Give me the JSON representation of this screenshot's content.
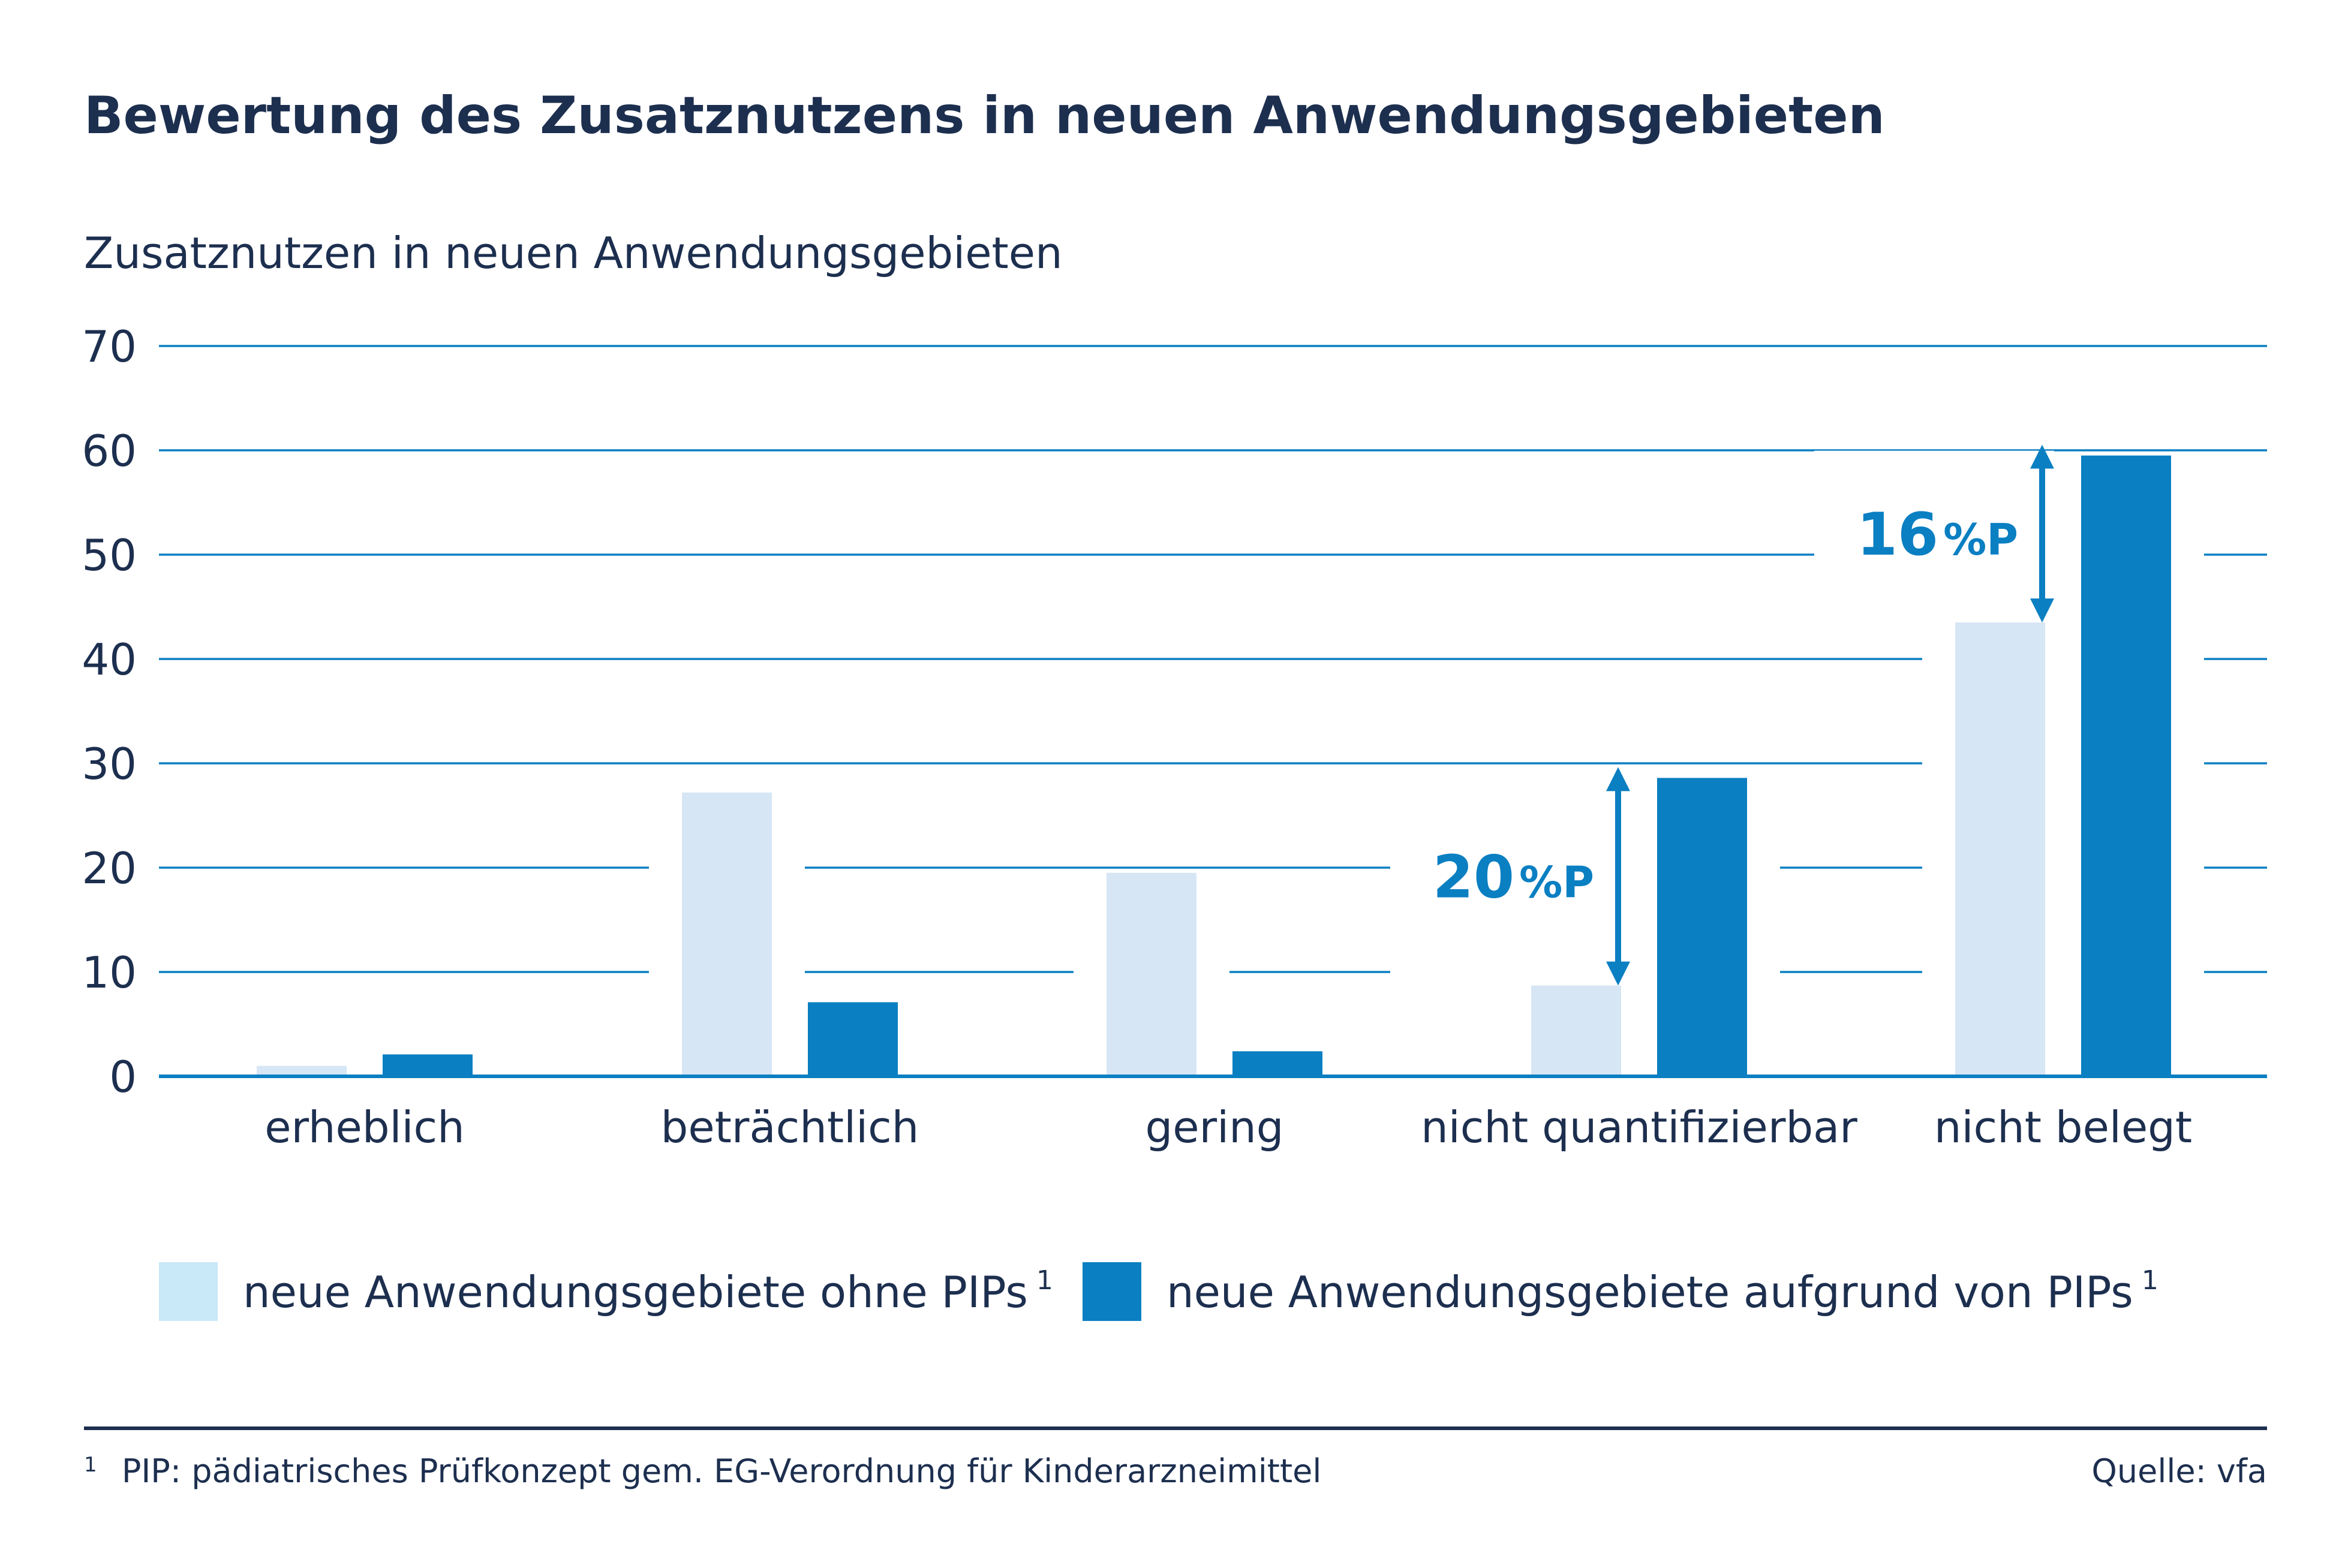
{
  "title": "Bewertung des Zusatznutzens in neuen Anwendungsgebieten",
  "footnote": {
    "marker": "1",
    "text": "PIP: pädiatrisches Prüfkonzept gem. EG-Verordnung für Kinderarzneimittel"
  },
  "source": "Quelle: vfa",
  "colors": {
    "text": "#1d2f4f",
    "accent": "#0a7fc2",
    "bar_light": "#d6e6f5",
    "bar_dark": "#0a7fc2",
    "legend_light": "#c9e8f8",
    "grid": "#0a7fc2"
  },
  "chart_data": {
    "type": "bar",
    "title": "Bewertung des Zusatznutzens in neuen Anwendungsgebieten",
    "ylabel": "Zusatznutzen in neuen Anwendungsgebieten",
    "xlabel": "",
    "ylim": [
      0,
      70
    ],
    "yticks": [
      0,
      10,
      20,
      30,
      40,
      50,
      60,
      70
    ],
    "grid": true,
    "legend_position": "bottom",
    "categories": [
      "erheblich",
      "beträchtlich",
      "gering",
      "nicht quantifizierbar",
      "nicht belegt"
    ],
    "series": [
      {
        "name": "neue Anwendungsgebiete ohne PIPs",
        "superscript": "1",
        "color": "#d6e6f5",
        "values": [
          1.0,
          27.2,
          19.5,
          8.7,
          43.5
        ]
      },
      {
        "name": "neue Anwendungsgebiete aufgrund von PIPs",
        "superscript": "1",
        "color": "#0a7fc2",
        "values": [
          2.1,
          7.1,
          2.4,
          28.6,
          59.5
        ]
      }
    ],
    "annotations": [
      {
        "category_index": 3,
        "from": 8.7,
        "to": 28.6,
        "number": "20",
        "unit": "%P"
      },
      {
        "category_index": 4,
        "from": 43.5,
        "to": 59.5,
        "number": "16",
        "unit": "%P"
      }
    ]
  }
}
